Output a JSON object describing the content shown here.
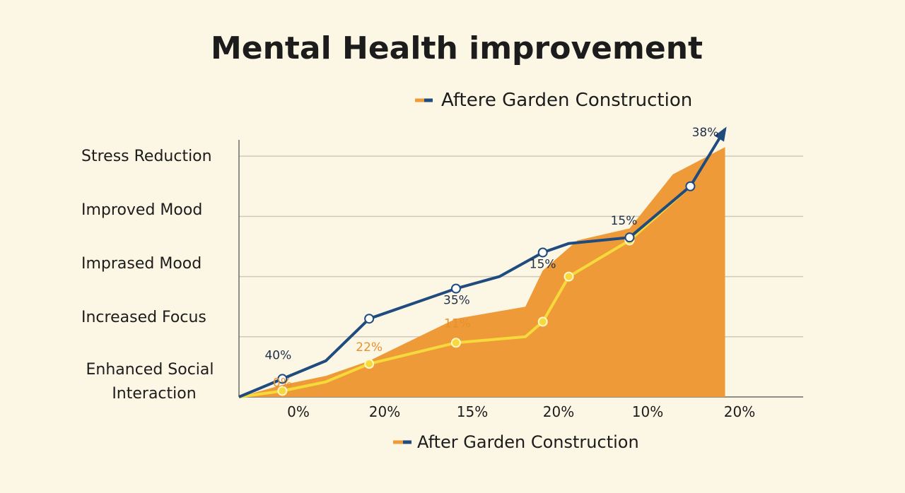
{
  "chart_data": {
    "type": "line",
    "title": "Mental Health improvement",
    "legend_top": "Aftere Garden Construction",
    "legend_bottom": "After Garden Construction",
    "y_categories": [
      "Stress Reduction",
      "Improved Mood",
      "Imprased Mood",
      "Increased Focus",
      "Enhanced Social Interaction"
    ],
    "x_ticks": [
      "0%",
      "20%",
      "15%",
      "20%",
      "10%",
      "20%"
    ],
    "grid": true,
    "colors": {
      "blue": "#1f4b7e",
      "orange": "#ee9a38",
      "yellow": "#f6d93a",
      "background": "#fcf6e4"
    },
    "series": [
      {
        "values": [
          0,
          0.3,
          0.6,
          1.3,
          1.8,
          2.0,
          2.4,
          2.55,
          2.65,
          3.5,
          4.45
        ],
        "x": [
          -0.5,
          0,
          0.5,
          1,
          2,
          2.5,
          3,
          3.3,
          4,
          4.7,
          5.1
        ],
        "labels": [
          {
            "i": 1,
            "text": "40%"
          },
          {
            "i": 4,
            "text": "35%"
          },
          {
            "i": 6,
            "text": "15%"
          },
          {
            "i": 8,
            "text": "15%"
          },
          {
            "i": 10,
            "text": "38%"
          }
        ]
      },
      {
        "values": [
          0,
          0.1,
          0.25,
          0.55,
          0.9,
          1.0,
          1.25,
          2.0,
          2.6,
          3.5
        ],
        "x": [
          -0.5,
          0,
          0.5,
          1,
          2,
          2.8,
          3,
          3.3,
          4,
          4.7
        ],
        "labels": [
          {
            "i": 1,
            "text": "0%"
          },
          {
            "i": 3,
            "text": "22%"
          },
          {
            "i": 4,
            "text": "11%"
          }
        ]
      }
    ],
    "area": {
      "x": [
        -0.5,
        0,
        0.5,
        1,
        2,
        2.8,
        3,
        3.4,
        4,
        4.5,
        5.1,
        5.1
      ],
      "values": [
        0,
        0.2,
        0.35,
        0.6,
        1.3,
        1.5,
        2.1,
        2.6,
        2.8,
        3.7,
        4.15,
        0
      ]
    },
    "xlim": [
      -0.5,
      6
    ],
    "ylim": [
      0,
      4.6
    ]
  }
}
